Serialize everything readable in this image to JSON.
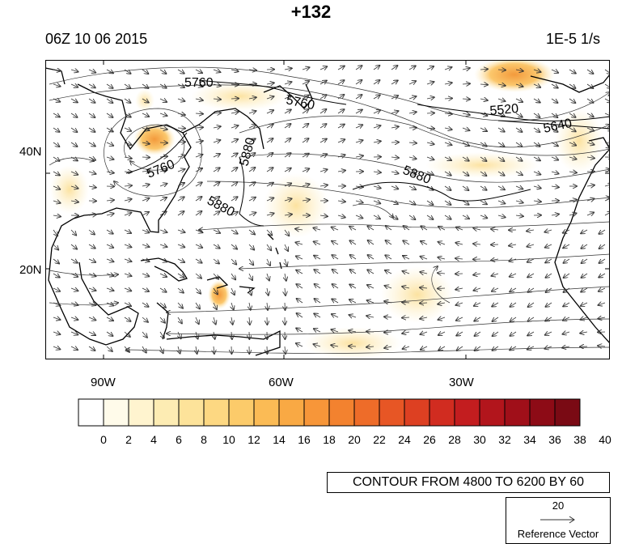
{
  "titles": {
    "main": "+132",
    "left": "06Z 10 06 2015",
    "right": "1E-5 1/s"
  },
  "axes": {
    "lat_labels": [
      "40N",
      "20N"
    ],
    "lon_labels": [
      "90W",
      "60W",
      "30W"
    ]
  },
  "contour_labels": [
    "5760",
    "5760",
    "5760",
    "5520",
    "5640",
    "5880",
    "5880",
    "5880"
  ],
  "colorbar": {
    "labels": [
      "0",
      "2",
      "4",
      "6",
      "8",
      "10",
      "12",
      "14",
      "16",
      "18",
      "20",
      "22",
      "24",
      "26",
      "28",
      "30",
      "32",
      "34",
      "36",
      "38",
      "40"
    ],
    "colors": [
      "#ffffff",
      "#fffbea",
      "#fff4cf",
      "#fdecb3",
      "#fde39a",
      "#fdd882",
      "#fccb6a",
      "#fbbb55",
      "#f9a944",
      "#f79639",
      "#f3822f",
      "#ee6c29",
      "#e75625",
      "#dd4022",
      "#d12c20",
      "#c31d1f",
      "#b2151c",
      "#a00f19",
      "#8d0b16",
      "#7a0a14"
    ]
  },
  "contour_info": "CONTOUR FROM 4800 TO 6200 BY 60",
  "reference_vector": {
    "magnitude": "20",
    "label": "Reference Vector"
  },
  "map_style": {
    "coast_color": "#000000",
    "streamline_color": "#333333",
    "shading_light": "#fdefc4",
    "shading_medium": "#fbc76c",
    "shading_strong": "#f39a3c"
  }
}
